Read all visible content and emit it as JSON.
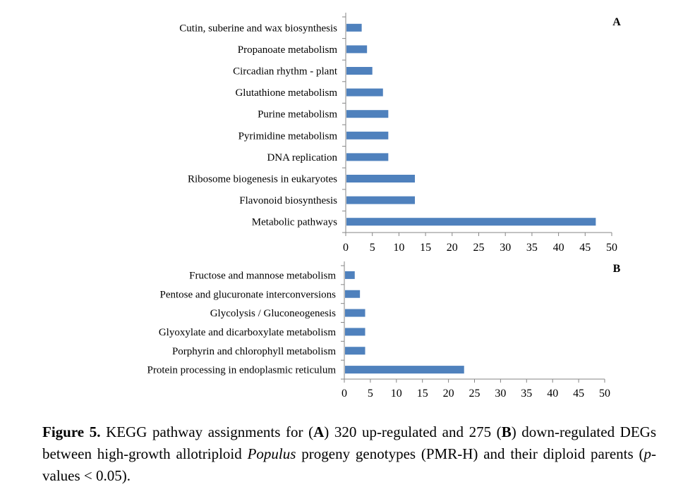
{
  "chart_data": [
    {
      "type": "bar",
      "orientation": "horizontal",
      "panel_label": "A",
      "categories": [
        "Cutin, suberine and wax biosynthesis",
        "Propanoate metabolism",
        "Circadian rhythm - plant",
        "Glutathione metabolism",
        "Purine metabolism",
        "Pyrimidine metabolism",
        "DNA replication",
        "Ribosome biogenesis in eukaryotes",
        "Flavonoid biosynthesis",
        "Metabolic pathways"
      ],
      "values": [
        3,
        4,
        5,
        7,
        8,
        8,
        8,
        13,
        13,
        47
      ],
      "xlim": [
        0,
        50
      ],
      "xticks": [
        "0",
        "5",
        "10",
        "15",
        "20",
        "25",
        "30",
        "35",
        "40",
        "45",
        "50"
      ],
      "grid": false,
      "bar_color": "#4f81bd"
    },
    {
      "type": "bar",
      "orientation": "horizontal",
      "panel_label": "B",
      "categories": [
        "Fructose and mannose metabolism",
        "Pentose and glucuronate interconversions",
        "Glycolysis / Gluconeogenesis",
        "Glyoxylate and dicarboxylate metabolism",
        "Porphyrin and chlorophyll metabolism",
        "Protein processing in endoplasmic reticulum"
      ],
      "values": [
        2,
        3,
        4,
        4,
        4,
        23
      ],
      "xlim": [
        0,
        50
      ],
      "xticks": [
        "0",
        "5",
        "10",
        "15",
        "20",
        "25",
        "30",
        "35",
        "40",
        "45",
        "50"
      ],
      "grid": false,
      "bar_color": "#4f81bd"
    }
  ],
  "caption": {
    "figure_label": "Figure 5.",
    "part1": " KEGG pathway assignments for (",
    "a_label": "A",
    "part2": ") 320 up-regulated and 275 (",
    "b_label": "B",
    "part3": ") down-regulated DEGs between high-growth allotriploid ",
    "genus": "Populus",
    "part4": " progeny genotypes (PMR-H) and their diploid parents (",
    "p_symbol": "p",
    "part5": "-values < 0.05)."
  }
}
